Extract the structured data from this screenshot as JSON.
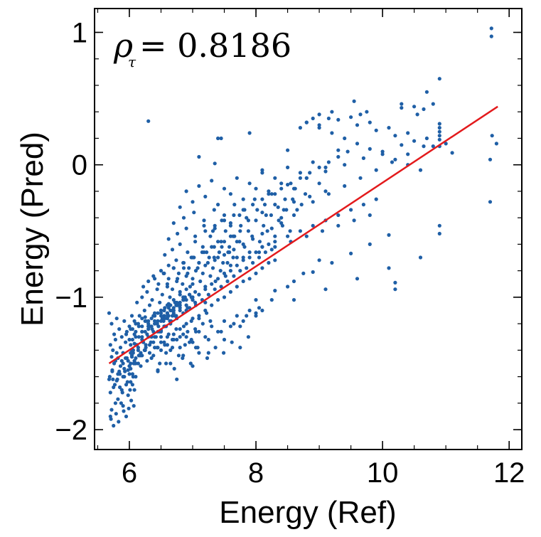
{
  "chart_data": {
    "type": "scatter",
    "title": "",
    "xlabel": "Energy (Ref)",
    "ylabel": "Energy (Pred)",
    "xlim": [
      5.45,
      12.2
    ],
    "ylim": [
      -2.15,
      1.18
    ],
    "xticks": [
      6,
      8,
      10,
      12
    ],
    "xtick_labels": [
      "6",
      "8",
      "10",
      "12"
    ],
    "yticks": [
      -2,
      -1,
      0,
      1
    ],
    "ytick_labels": [
      "−2",
      "−1",
      "0",
      "1"
    ],
    "x_minor_step": 0.5,
    "y_minor_step": 0.2,
    "grid": false,
    "annotation": {
      "symbol": "ρ",
      "subscript": "τ",
      "equals_value": "= 0.8186"
    },
    "fit_line": {
      "x": [
        5.68,
        11.82
      ],
      "y": [
        -1.5,
        0.44
      ],
      "color": "#e31a1c"
    },
    "marker_color": "#1f5fa6",
    "points_x": [
      5.68,
      5.7,
      5.72,
      5.7,
      5.73,
      5.75,
      5.78,
      5.8,
      5.82,
      5.85,
      5.88,
      5.9,
      5.92,
      5.95,
      5.98,
      6,
      6.02,
      6.05,
      6.08,
      6.1,
      5.72,
      5.76,
      5.8,
      5.84,
      5.88,
      5.92,
      5.96,
      6,
      6.04,
      6.08,
      5.7,
      5.74,
      5.78,
      5.82,
      5.86,
      5.9,
      5.94,
      5.98,
      6.02,
      6.06,
      5.68,
      5.72,
      5.76,
      5.8,
      5.84,
      5.88,
      5.92,
      5.96,
      6,
      6.04,
      5.71,
      5.75,
      5.79,
      5.83,
      5.87,
      5.91,
      5.95,
      5.99,
      6.03,
      6.07,
      5.69,
      5.73,
      5.77,
      5.81,
      5.85,
      5.89,
      5.93,
      5.97,
      6.01,
      6.05,
      5.74,
      5.82,
      5.9,
      5.98,
      6.06,
      6.14,
      5.78,
      5.86,
      5.94,
      6.02,
      6.1,
      6.18,
      6,
      6.04,
      6.08,
      6.12,
      6.16,
      6.2,
      6.24,
      6.28,
      6.32,
      6.36,
      6.4,
      6.44,
      6.48,
      6.52,
      6.56,
      6.6,
      6.64,
      6.68,
      6.72,
      6.76,
      6.02,
      6.06,
      6.1,
      6.14,
      6.18,
      6.22,
      6.26,
      6.3,
      6.34,
      6.38,
      6.42,
      6.46,
      6.5,
      6.54,
      6.58,
      6.62,
      6.66,
      6.7,
      6.74,
      6.78,
      6.05,
      6.1,
      6.15,
      6.2,
      6.25,
      6.3,
      6.35,
      6.4,
      6.45,
      6.5,
      6.55,
      6.6,
      6.65,
      6.7,
      6.75,
      6.8,
      6.85,
      6.9,
      6.95,
      7,
      6.08,
      6.16,
      6.24,
      6.32,
      6.4,
      6.48,
      6.56,
      6.64,
      6.72,
      6.8,
      6.88,
      6.96,
      7.04,
      7.12,
      7.2,
      7.28,
      7.36,
      7.44,
      7.52,
      7.6,
      6.12,
      6.2,
      6.28,
      6.36,
      6.44,
      6.52,
      6.6,
      6.68,
      6.76,
      6.84,
      6.92,
      7,
      7.08,
      7.16,
      7.24,
      7.32,
      7.4,
      7.48,
      7.56,
      7.64,
      6.22,
      6.3,
      6.38,
      6.46,
      6.54,
      6.62,
      6.7,
      6.78,
      6.86,
      6.94,
      7.02,
      7.1,
      7.18,
      7.26,
      7.34,
      7.42,
      7.5,
      7.58,
      7.66,
      7.74,
      6.3,
      6.4,
      6.5,
      6.6,
      6.7,
      6.8,
      6.9,
      7,
      7.1,
      7.2,
      7.3,
      7.4,
      7.5,
      7.6,
      7.7,
      7.8,
      7.9,
      8,
      8.1,
      8.2,
      6.35,
      6.45,
      6.55,
      6.65,
      6.75,
      6.85,
      6.95,
      7.05,
      7.15,
      7.25,
      7.35,
      7.45,
      7.55,
      7.65,
      7.75,
      7.85,
      7.95,
      8.05,
      8.15,
      8.25,
      6.4,
      6.5,
      6.6,
      6.7,
      6.8,
      6.9,
      7,
      7.1,
      7.2,
      7.3,
      7.4,
      7.5,
      7.6,
      7.7,
      7.8,
      7.9,
      8,
      8.1,
      8.2,
      8.3,
      6.5,
      6.62,
      6.74,
      6.86,
      6.98,
      7.1,
      7.22,
      7.34,
      7.46,
      7.58,
      7.7,
      7.82,
      7.94,
      8.06,
      8.18,
      8.3,
      8.42,
      8.54,
      6.56,
      6.68,
      6.8,
      6.92,
      7.04,
      7.16,
      7.28,
      7.4,
      7.52,
      7.64,
      7.76,
      7.88,
      8,
      8.12,
      8.24,
      8.36,
      8.48,
      8.6,
      6.62,
      6.76,
      6.9,
      7.04,
      7.18,
      7.32,
      7.46,
      7.6,
      7.74,
      7.88,
      8.02,
      8.16,
      8.3,
      8.44,
      8.58,
      8.72,
      6.7,
      6.86,
      7.02,
      7.18,
      7.34,
      7.5,
      7.66,
      7.82,
      7.98,
      8.14,
      8.3,
      8.46,
      8.62,
      8.78,
      6.8,
      7,
      7.2,
      7.4,
      7.6,
      7.8,
      8,
      8.2,
      8.4,
      8.6,
      8.8,
      9,
      6.9,
      7.1,
      7.3,
      7.5,
      7.7,
      7.9,
      8.1,
      8.3,
      8.5,
      8.7,
      8.9,
      9.1,
      6.15,
      6.25,
      6.35,
      6.45,
      6.55,
      6.65,
      6.75,
      6.85,
      6.95,
      7.05,
      6.18,
      6.28,
      6.38,
      6.48,
      6.58,
      6.68,
      6.78,
      6.88,
      6.98,
      7.08,
      6.1,
      6.2,
      6.3,
      6.4,
      6.5,
      6.6,
      6.7,
      6.8,
      6.9,
      7,
      7.1,
      7.2,
      6.02,
      6.08,
      6.14,
      6.2,
      6.26,
      6.32,
      6.38,
      6.44,
      6.5,
      6.56,
      6.62,
      6.68,
      6.74,
      6.8,
      6.86,
      6.92,
      6.98,
      7.04,
      5.95,
      6,
      6.05,
      6.1,
      6.15,
      6.2,
      6.25,
      6.3,
      6.35,
      6.4,
      6.45,
      6.5,
      6.55,
      6.6,
      6.65,
      6.7,
      6.75,
      6.8,
      6.85,
      6.9,
      6.95,
      7,
      5.9,
      5.96,
      6.02,
      6.08,
      6.14,
      6.2,
      6.26,
      6.32,
      6.38,
      6.44,
      6.5,
      6.56,
      6.62,
      6.68,
      6.74,
      6.8,
      6.86,
      6.92,
      6.98,
      7.04,
      7.1,
      7.16,
      7.22,
      7.28,
      6.5,
      6.6,
      6.7,
      6.8,
      6.9,
      7,
      7.1,
      7.2,
      7.3,
      7.4,
      7.5,
      7.6,
      7.7,
      7.8,
      7.9,
      8,
      6.45,
      6.58,
      6.71,
      6.84,
      6.97,
      7.1,
      7.23,
      7.36,
      7.49,
      7.62,
      7.75,
      7.88,
      6.6,
      6.75,
      6.9,
      7.05,
      7.2,
      7.35,
      7.5,
      7.65,
      7.8,
      7.95,
      8.1,
      8.25,
      8.4,
      6.4,
      6.55,
      6.7,
      6.85,
      7,
      7.15,
      7.3,
      7.45,
      7.6,
      7.75,
      6.65,
      6.85,
      7.05,
      7.25,
      7.45,
      7.65,
      7.85,
      8.05,
      6.75,
      7,
      7.25,
      7.5,
      7.75,
      8,
      8.25,
      8.5,
      8.75,
      9,
      7.2,
      7.35,
      7.5,
      7.65,
      7.8,
      7.95,
      8.1,
      8.25,
      8.4,
      8.55,
      8.7,
      8.85,
      9,
      9.15,
      9.3,
      9.45,
      7.7,
      7.9,
      8.1,
      8.3,
      8.5,
      8.7,
      8.9,
      9.1,
      9.3,
      9.5,
      9.7,
      9.9,
      8,
      8.3,
      8.6,
      8.9,
      9.2,
      9.5,
      9.8,
      10.1,
      8.2,
      8.5,
      8.8,
      9.1,
      9.4,
      9.7,
      10,
      10.3,
      8.4,
      8.65,
      8.9,
      9.15,
      9.4,
      9.65,
      9.9,
      10.15,
      10.4,
      10.65,
      8.8,
      9,
      9.2,
      9.4,
      9.6,
      9.8,
      10,
      10.2,
      10.4,
      10.6,
      9,
      9.3,
      9.6,
      9.9,
      10.2,
      10.5,
      10.8,
      9.2,
      9.5,
      9.8,
      10.1,
      10.4,
      10.7,
      11,
      8.1,
      8.6,
      9.1,
      9.6,
      10.1,
      10.6,
      7.55,
      7.8,
      8.05,
      8.3,
      8.55,
      8.8,
      9.05,
      9.3,
      9.55,
      9.8,
      7.35,
      7.6,
      7.85,
      8.1,
      8.35,
      8.6,
      8.85,
      9.1,
      10.2,
      10.2,
      10.3,
      10.3,
      10.55,
      10.7,
      10.8,
      10.9,
      10.9,
      10.9,
      10.9,
      10.9,
      10.9,
      10.9,
      10.9,
      10.9,
      11.1,
      11.7,
      11.7,
      11.72,
      11.72,
      11.73,
      11.8,
      9.3,
      9.55,
      9.65,
      10.5,
      10.65,
      9.75,
      8.9,
      9.15,
      7.4,
      7.45,
      7.35,
      7.1,
      8.1,
      8.5,
      7.9,
      8.7,
      9.0,
      8.8,
      6.3,
      6.3,
      6.25,
      6.5,
      6.2,
      6.08,
      6.06,
      6.04,
      6.07,
      6.45,
      6.55,
      6.62
    ],
    "points_y": [
      -1.62,
      -1.72,
      -1.85,
      -1.9,
      -1.55,
      -1.68,
      -1.8,
      -1.63,
      -1.77,
      -1.58,
      -1.7,
      -1.82,
      -1.6,
      -1.66,
      -1.74,
      -1.52,
      -1.64,
      -1.58,
      -1.7,
      -1.6,
      -1.45,
      -1.5,
      -1.42,
      -1.56,
      -1.48,
      -1.54,
      -1.46,
      -1.52,
      -1.44,
      -1.5,
      -1.36,
      -1.4,
      -1.32,
      -1.46,
      -1.38,
      -1.42,
      -1.34,
      -1.48,
      -1.36,
      -1.4,
      -1.12,
      -1.2,
      -1.28,
      -1.16,
      -1.24,
      -1.3,
      -1.18,
      -1.26,
      -1.22,
      -1.14,
      -1.92,
      -1.97,
      -1.88,
      -1.94,
      -1.8,
      -1.86,
      -1.9,
      -1.84,
      -1.78,
      -1.82,
      -1.6,
      -1.56,
      -1.66,
      -1.62,
      -1.68,
      -1.72,
      -1.56,
      -1.64,
      -1.7,
      -1.66,
      -1.62,
      -1.58,
      -1.6,
      -1.55,
      -1.6,
      -1.5,
      -1.48,
      -1.52,
      -1.46,
      -1.54,
      -1.5,
      -1.44,
      -1.58,
      -1.4,
      -1.48,
      -1.36,
      -1.44,
      -1.32,
      -1.4,
      -1.28,
      -1.36,
      -1.24,
      -1.3,
      -1.2,
      -1.26,
      -1.16,
      -1.22,
      -1.12,
      -1.18,
      -1.1,
      -1.14,
      -1.06,
      -1.5,
      -1.42,
      -1.46,
      -1.38,
      -1.42,
      -1.34,
      -1.38,
      -1.3,
      -1.34,
      -1.26,
      -1.3,
      -1.22,
      -1.26,
      -1.18,
      -1.22,
      -1.14,
      -1.18,
      -1.1,
      -1.14,
      -1.06,
      -1.32,
      -1.26,
      -1.3,
      -1.22,
      -1.26,
      -1.18,
      -1.22,
      -1.14,
      -1.18,
      -1.1,
      -1.14,
      -1.06,
      -1.1,
      -1.02,
      -1.06,
      -0.98,
      -1.02,
      -0.94,
      -0.98,
      -0.9,
      -1.18,
      -1.14,
      -1.1,
      -1.06,
      -1.12,
      -1.04,
      -1.08,
      -1,
      -1.04,
      -0.96,
      -1,
      -0.92,
      -0.96,
      -0.88,
      -0.92,
      -0.84,
      -0.88,
      -0.8,
      -0.84,
      -0.76,
      -1.04,
      -1,
      -0.96,
      -1.02,
      -0.94,
      -0.98,
      -0.9,
      -0.94,
      -0.86,
      -0.9,
      -0.82,
      -0.86,
      -0.78,
      -0.82,
      -0.74,
      -0.78,
      -0.7,
      -0.74,
      -0.66,
      -0.7,
      -0.92,
      -0.88,
      -0.84,
      -0.9,
      -0.82,
      -0.86,
      -0.78,
      -0.82,
      -0.74,
      -0.78,
      -0.7,
      -0.74,
      -0.66,
      -0.7,
      -0.62,
      -0.66,
      -0.58,
      -0.62,
      -0.54,
      -0.58,
      -1.22,
      -1.18,
      -1.14,
      -1.12,
      -1.1,
      -1.06,
      -1.02,
      -1,
      -0.98,
      -0.94,
      -0.9,
      -0.86,
      -0.82,
      -0.8,
      -0.76,
      -0.72,
      -0.7,
      -0.66,
      -0.62,
      -0.6,
      -1.3,
      -1.26,
      -1.22,
      -1.2,
      -1.16,
      -1.12,
      -1.08,
      -1.06,
      -1.02,
      -0.98,
      -0.94,
      -0.92,
      -0.88,
      -0.84,
      -0.8,
      -0.78,
      -0.74,
      -0.7,
      -0.66,
      -0.64,
      -1.38,
      -1.34,
      -1.3,
      -1.28,
      -1.24,
      -1.2,
      -1.16,
      -1.14,
      -1.1,
      -1.06,
      -1.02,
      -1,
      -0.96,
      -0.92,
      -0.88,
      -0.86,
      -0.82,
      -0.78,
      -0.74,
      -0.72,
      -0.8,
      -0.76,
      -0.72,
      -0.78,
      -0.7,
      -0.74,
      -0.66,
      -0.7,
      -0.62,
      -0.66,
      -0.58,
      -0.62,
      -0.54,
      -0.58,
      -0.5,
      -0.54,
      -0.46,
      -0.5,
      -0.68,
      -0.64,
      -0.6,
      -0.66,
      -0.58,
      -0.62,
      -0.54,
      -0.58,
      -0.5,
      -0.54,
      -0.46,
      -0.5,
      -0.42,
      -0.46,
      -0.38,
      -0.42,
      -0.34,
      -0.38,
      -0.56,
      -0.52,
      -0.48,
      -0.54,
      -0.46,
      -0.5,
      -0.42,
      -0.46,
      -0.38,
      -0.42,
      -0.34,
      -0.38,
      -0.3,
      -0.34,
      -0.26,
      -0.3,
      -0.44,
      -0.4,
      -0.36,
      -0.42,
      -0.34,
      -0.38,
      -0.3,
      -0.34,
      -0.26,
      -0.3,
      -0.22,
      -0.26,
      -0.18,
      -0.22,
      -0.32,
      -0.28,
      -0.24,
      -0.3,
      -0.22,
      -0.26,
      -0.18,
      -0.22,
      -0.14,
      -0.18,
      -0.1,
      -0.14,
      -0.2,
      -0.16,
      -0.12,
      -0.18,
      -0.1,
      -0.14,
      -0.06,
      -0.1,
      -0.02,
      -0.06,
      0.02,
      -0.02,
      -1.44,
      -1.4,
      -1.46,
      -1.38,
      -1.34,
      -1.4,
      -1.32,
      -1.28,
      -1.34,
      -1.26,
      -1.52,
      -1.48,
      -1.44,
      -1.5,
      -1.42,
      -1.38,
      -1.44,
      -1.36,
      -1.32,
      -1.38,
      -1.2,
      -1.16,
      -1.22,
      -1.14,
      -1.1,
      -1.16,
      -1.08,
      -1.04,
      -1.1,
      -1.02,
      -0.98,
      -1.04,
      -1.24,
      -1.28,
      -1.2,
      -1.26,
      -1.18,
      -1.22,
      -1.14,
      -1.2,
      -1.12,
      -1.16,
      -1.08,
      -1.14,
      -1.06,
      -1.1,
      -1.02,
      -1.08,
      -1,
      -1.04,
      -1.28,
      -1.32,
      -1.24,
      -1.3,
      -1.22,
      -1.26,
      -1.18,
      -1.24,
      -1.16,
      -1.2,
      -1.12,
      -1.18,
      -1.1,
      -1.14,
      -1.06,
      -1.12,
      -1.04,
      -1.08,
      -1,
      -1.06,
      -0.98,
      -1.02,
      -1.5,
      -1.46,
      -1.42,
      -1.48,
      -1.4,
      -1.44,
      -1.36,
      -1.42,
      -1.34,
      -1.38,
      -1.3,
      -1.36,
      -1.28,
      -1.32,
      -1.24,
      -1.3,
      -1.22,
      -1.26,
      -1.18,
      -1.24,
      -1.16,
      -1.2,
      -1.12,
      -1.18,
      -1.4,
      -1.36,
      -1.32,
      -1.38,
      -1.3,
      -1.34,
      -1.26,
      -1.3,
      -1.22,
      -1.26,
      -1.18,
      -1.22,
      -1.14,
      -1.18,
      -1.1,
      -1.14,
      -1.56,
      -1.5,
      -1.54,
      -1.46,
      -1.5,
      -1.42,
      -1.46,
      -1.38,
      -1.42,
      -1.34,
      -1.38,
      -1.3,
      -0.92,
      -0.88,
      -0.84,
      -0.8,
      -0.76,
      -0.72,
      -0.68,
      -0.64,
      -0.6,
      -0.56,
      -0.52,
      -0.48,
      -0.44,
      -0.86,
      -0.82,
      -0.78,
      -0.74,
      -0.7,
      -0.66,
      -0.62,
      -0.58,
      -0.54,
      -0.5,
      -1.5,
      -1.44,
      -1.38,
      -1.32,
      -1.26,
      -1.2,
      -1.14,
      -1.08,
      -1.62,
      -1.52,
      -1.42,
      -1.32,
      -1.22,
      -1.12,
      -1.02,
      -0.92,
      -0.82,
      -0.72,
      -0.5,
      -0.46,
      -0.42,
      -0.38,
      -0.34,
      -0.3,
      -0.26,
      -0.22,
      -0.18,
      -0.14,
      -0.1,
      -0.06,
      -0.02,
      0.02,
      0.06,
      0.1,
      -0.7,
      -0.66,
      -0.62,
      -0.58,
      -0.54,
      -0.5,
      -0.46,
      -0.42,
      -0.38,
      -0.34,
      -0.3,
      -0.26,
      -1.02,
      -0.95,
      -0.88,
      -0.81,
      -0.74,
      -0.67,
      -0.6,
      -0.53,
      -0.2,
      -0.15,
      -0.1,
      -0.05,
      0,
      0.05,
      0.1,
      0.15,
      -0.4,
      -0.34,
      -0.28,
      -0.22,
      -0.16,
      -0.1,
      -0.04,
      0.02,
      0.08,
      0.14,
      0.32,
      0.28,
      0.24,
      0.2,
      0.16,
      0.12,
      0.08,
      0.04,
      0,
      -0.04,
      0.38,
      0.34,
      0.3,
      0.26,
      0.22,
      0.18,
      0.14,
      0.4,
      0.36,
      0.32,
      0.28,
      0.24,
      0.2,
      0.16,
      -1.1,
      -1.02,
      -0.94,
      -0.86,
      -0.78,
      -0.7,
      -0.74,
      -0.7,
      -0.66,
      -0.62,
      -0.58,
      -0.54,
      -0.5,
      -0.46,
      -0.42,
      -0.38,
      -0.48,
      -0.44,
      -0.4,
      -0.36,
      -0.32,
      -0.28,
      -0.24,
      -0.2,
      -0.89,
      -0.94,
      0.46,
      0.43,
      0.38,
      0.55,
      0.46,
      0.22,
      0.28,
      0.25,
      0.31,
      0.19,
      -0.46,
      -0.52,
      0.65,
      0.14,
      0.09,
      0.04,
      -0.28,
      1.03,
      0.97,
      0.22,
      0.16,
      0.11,
      0.48,
      0.38,
      0.44,
      0.42,
      0.4,
      0.35,
      0.35,
      0.2,
      0.2,
      0.01,
      0.06,
      -0.04,
      0.11,
      0.24,
      0.28,
      0.3,
      0.32,
      0.33,
      -1.2,
      -1.15,
      -1.25,
      -1.3,
      -1.35,
      -1.4,
      -1.45,
      -1.5,
      -1.55,
      -1.1,
      -1.05,
      -1.0
    ]
  }
}
